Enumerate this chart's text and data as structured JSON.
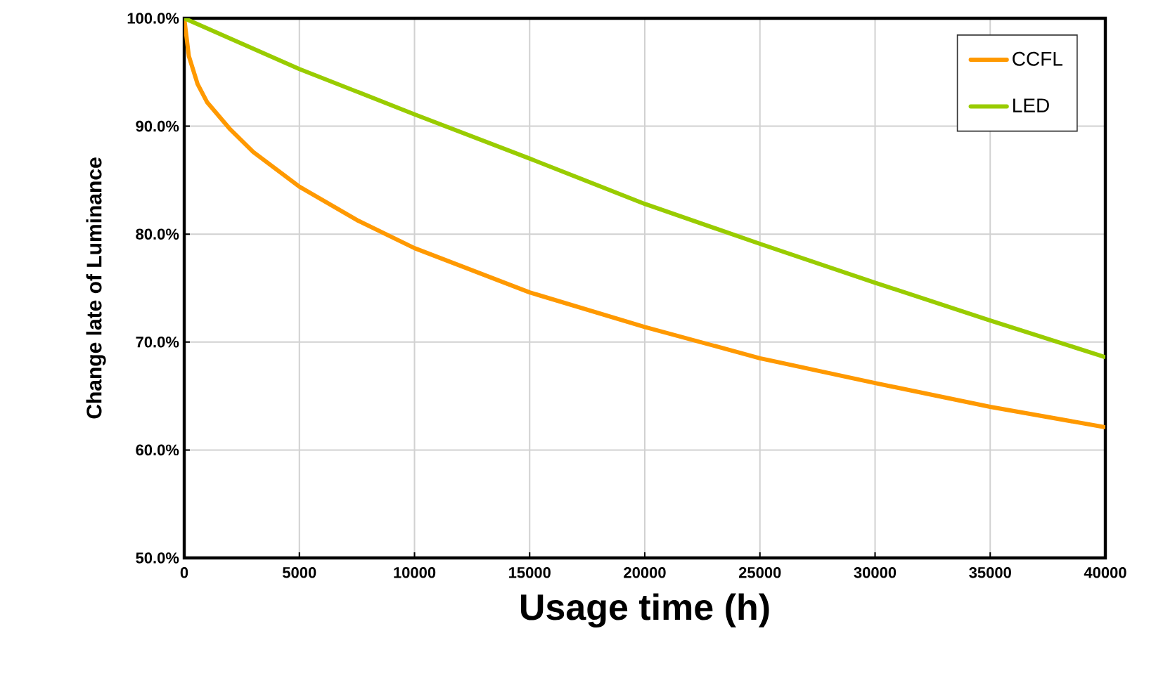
{
  "chart_data": {
    "type": "line",
    "xlabel": "Usage time (h)",
    "ylabel": "Change late of Luminance",
    "xlim": [
      0,
      40000
    ],
    "xticks": [
      0,
      5000,
      10000,
      15000,
      20000,
      25000,
      30000,
      35000,
      40000
    ],
    "ylim": [
      50,
      100
    ],
    "yticks": [
      {
        "value": 50,
        "label": "50.0%"
      },
      {
        "value": 60,
        "label": "60.0%"
      },
      {
        "value": 70,
        "label": "70.0%"
      },
      {
        "value": 80,
        "label": "80.0%"
      },
      {
        "value": 90,
        "label": "90.0%"
      },
      {
        "value": 100,
        "label": "100.0%"
      }
    ],
    "grid": true,
    "legend": "top right",
    "marker": "none",
    "line_style": "solid",
    "series": [
      {
        "name": "CCFL",
        "color": "#ff9900",
        "x": [
          0,
          200,
          580,
          1000,
          2000,
          3000,
          5000,
          7500,
          10000,
          15000,
          20000,
          25000,
          30000,
          35000,
          40000
        ],
        "values": [
          100,
          96.5,
          93.9,
          92.2,
          89.7,
          87.6,
          84.4,
          81.3,
          78.7,
          74.6,
          71.4,
          68.5,
          66.2,
          64.0,
          62.1
        ]
      },
      {
        "name": "LED",
        "color": "#99cc00",
        "x": [
          0,
          5000,
          10000,
          15000,
          20000,
          25000,
          30000,
          35000,
          40000
        ],
        "values": [
          100,
          95.3,
          91.1,
          87.0,
          82.8,
          79.1,
          75.5,
          72.0,
          68.6
        ]
      }
    ]
  }
}
